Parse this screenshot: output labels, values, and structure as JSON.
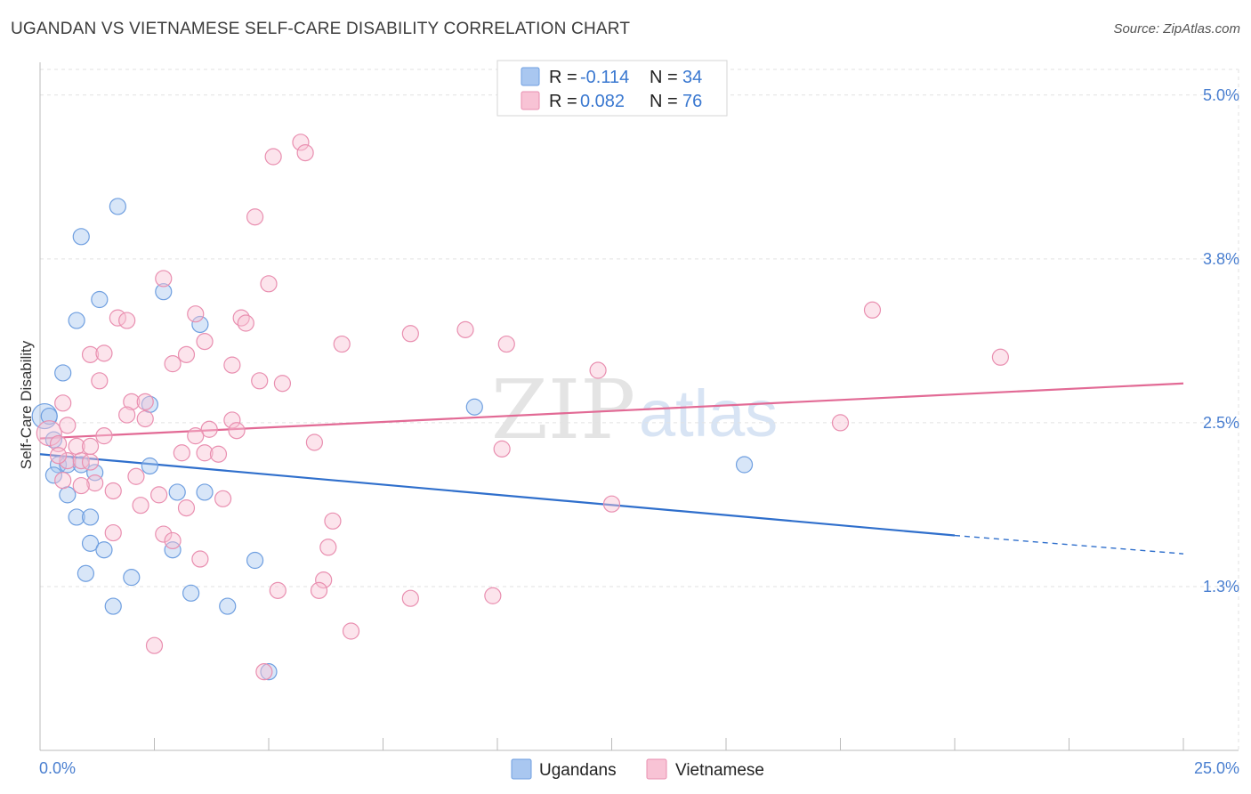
{
  "title": "UGANDAN VS VIETNAMESE SELF-CARE DISABILITY CORRELATION CHART",
  "source": "Source: ZipAtlas.com",
  "watermark": {
    "zip": "ZIP",
    "atlas": "atlas"
  },
  "legend_top": [
    {
      "r_label": "R = ",
      "r_value": "-0.114",
      "n_label": "N = ",
      "n_value": "34",
      "color": "#a9c7f0",
      "stroke": "#6f9fe0"
    },
    {
      "r_label": "R = ",
      "r_value": "0.082",
      "n_label": "N = ",
      "n_value": "76",
      "color": "#f8c3d5",
      "stroke": "#e98fb0"
    }
  ],
  "legend_bottom": [
    {
      "label": "Ugandans",
      "color": "#a9c7f0",
      "stroke": "#6f9fe0"
    },
    {
      "label": "Vietnamese",
      "color": "#f8c3d5",
      "stroke": "#e98fb0"
    }
  ],
  "chart_data": {
    "type": "scatter",
    "ylabel": "Self-Care Disability",
    "xlim": [
      0,
      25
    ],
    "ylim": [
      0,
      5.25
    ],
    "x_tick_labels": [
      "0.0%",
      "25.0%"
    ],
    "y_ticks": [
      {
        "value": 1.25,
        "label": "1.3%"
      },
      {
        "value": 2.5,
        "label": "2.5%"
      },
      {
        "value": 3.75,
        "label": "3.8%"
      },
      {
        "value": 5.0,
        "label": "5.0%"
      }
    ],
    "grid": true,
    "series": [
      {
        "name": "Ugandans",
        "color": "#6f9fe0",
        "fill": "#a9c7f0",
        "trend": {
          "x": [
            0,
            20
          ],
          "y": [
            2.26,
            1.64
          ],
          "dashed_to": [
            25,
            1.5
          ],
          "color": "#2f6fcc"
        },
        "points": [
          [
            0.1,
            2.55,
            14
          ],
          [
            1.7,
            4.15,
            9
          ],
          [
            0.9,
            3.92,
            9
          ],
          [
            1.3,
            3.44,
            9
          ],
          [
            0.8,
            3.28,
            9
          ],
          [
            2.7,
            3.5,
            9
          ],
          [
            3.5,
            3.25,
            9
          ],
          [
            0.5,
            2.88,
            9
          ],
          [
            2.4,
            2.64,
            9
          ],
          [
            9.5,
            2.62,
            9
          ],
          [
            0.3,
            2.37,
            9
          ],
          [
            0.4,
            2.18,
            9
          ],
          [
            0.6,
            2.18,
            9
          ],
          [
            0.9,
            2.18,
            9
          ],
          [
            1.2,
            2.12,
            9
          ],
          [
            2.4,
            2.17,
            9
          ],
          [
            0.3,
            2.1,
            9
          ],
          [
            15.4,
            2.18,
            9
          ],
          [
            0.6,
            1.95,
            9
          ],
          [
            3.0,
            1.97,
            9
          ],
          [
            3.6,
            1.97,
            9
          ],
          [
            0.8,
            1.78,
            9
          ],
          [
            1.1,
            1.78,
            9
          ],
          [
            1.1,
            1.58,
            9
          ],
          [
            1.4,
            1.53,
            9
          ],
          [
            2.9,
            1.53,
            9
          ],
          [
            4.7,
            1.45,
            9
          ],
          [
            1.0,
            1.35,
            9
          ],
          [
            2.0,
            1.32,
            9
          ],
          [
            3.3,
            1.2,
            9
          ],
          [
            1.6,
            1.1,
            9
          ],
          [
            4.1,
            1.1,
            9
          ],
          [
            5.0,
            0.6,
            9
          ],
          [
            0.2,
            2.55,
            9
          ]
        ]
      },
      {
        "name": "Vietnamese",
        "color": "#e98fb0",
        "fill": "#f8c3d5",
        "trend": {
          "x": [
            0,
            25
          ],
          "y": [
            2.38,
            2.8
          ],
          "color": "#e26a95"
        },
        "points": [
          [
            0.2,
            2.42,
            14
          ],
          [
            5.7,
            4.64,
            9
          ],
          [
            5.1,
            4.53,
            9
          ],
          [
            5.8,
            4.56,
            9
          ],
          [
            4.7,
            4.07,
            9
          ],
          [
            2.7,
            3.6,
            9
          ],
          [
            5.0,
            3.56,
            9
          ],
          [
            18.2,
            3.36,
            9
          ],
          [
            1.7,
            3.3,
            9
          ],
          [
            1.9,
            3.28,
            9
          ],
          [
            3.4,
            3.33,
            9
          ],
          [
            4.4,
            3.3,
            9
          ],
          [
            4.5,
            3.26,
            9
          ],
          [
            8.1,
            3.18,
            9
          ],
          [
            9.3,
            3.21,
            9
          ],
          [
            3.6,
            3.12,
            9
          ],
          [
            6.6,
            3.1,
            9
          ],
          [
            10.2,
            3.1,
            9
          ],
          [
            1.1,
            3.02,
            9
          ],
          [
            1.4,
            3.03,
            9
          ],
          [
            3.2,
            3.02,
            9
          ],
          [
            21.0,
            3.0,
            9
          ],
          [
            2.9,
            2.95,
            9
          ],
          [
            4.2,
            2.94,
            9
          ],
          [
            12.2,
            2.9,
            9
          ],
          [
            1.3,
            2.82,
            9
          ],
          [
            4.8,
            2.82,
            9
          ],
          [
            5.3,
            2.8,
            9
          ],
          [
            0.5,
            2.65,
            9
          ],
          [
            2.0,
            2.66,
            9
          ],
          [
            2.3,
            2.66,
            9
          ],
          [
            1.9,
            2.56,
            9
          ],
          [
            2.3,
            2.53,
            9
          ],
          [
            4.2,
            2.52,
            9
          ],
          [
            0.6,
            2.48,
            9
          ],
          [
            17.5,
            2.5,
            9
          ],
          [
            3.7,
            2.45,
            9
          ],
          [
            4.3,
            2.44,
            9
          ],
          [
            1.4,
            2.4,
            9
          ],
          [
            3.4,
            2.4,
            9
          ],
          [
            6.0,
            2.35,
            9
          ],
          [
            0.4,
            2.34,
            9
          ],
          [
            0.8,
            2.32,
            9
          ],
          [
            10.1,
            2.3,
            9
          ],
          [
            3.1,
            2.27,
            9
          ],
          [
            3.6,
            2.27,
            9
          ],
          [
            3.9,
            2.26,
            9
          ],
          [
            0.6,
            2.21,
            9
          ],
          [
            0.4,
            2.25,
            9
          ],
          [
            0.9,
            2.21,
            9
          ],
          [
            1.1,
            2.2,
            9
          ],
          [
            2.1,
            2.09,
            9
          ],
          [
            0.5,
            2.06,
            9
          ],
          [
            1.2,
            2.04,
            9
          ],
          [
            0.9,
            2.02,
            9
          ],
          [
            1.6,
            1.98,
            9
          ],
          [
            2.6,
            1.95,
            9
          ],
          [
            4.0,
            1.92,
            9
          ],
          [
            12.5,
            1.88,
            9
          ],
          [
            2.2,
            1.87,
            9
          ],
          [
            3.2,
            1.85,
            9
          ],
          [
            6.4,
            1.75,
            9
          ],
          [
            1.6,
            1.66,
            9
          ],
          [
            2.7,
            1.65,
            9
          ],
          [
            2.9,
            1.6,
            9
          ],
          [
            6.3,
            1.55,
            9
          ],
          [
            3.5,
            1.46,
            9
          ],
          [
            6.2,
            1.3,
            9
          ],
          [
            5.2,
            1.22,
            9
          ],
          [
            6.1,
            1.22,
            9
          ],
          [
            8.1,
            1.16,
            9
          ],
          [
            9.9,
            1.18,
            9
          ],
          [
            6.8,
            0.91,
            9
          ],
          [
            2.5,
            0.8,
            9
          ],
          [
            4.9,
            0.6,
            9
          ],
          [
            1.1,
            2.32,
            9
          ]
        ]
      }
    ]
  }
}
